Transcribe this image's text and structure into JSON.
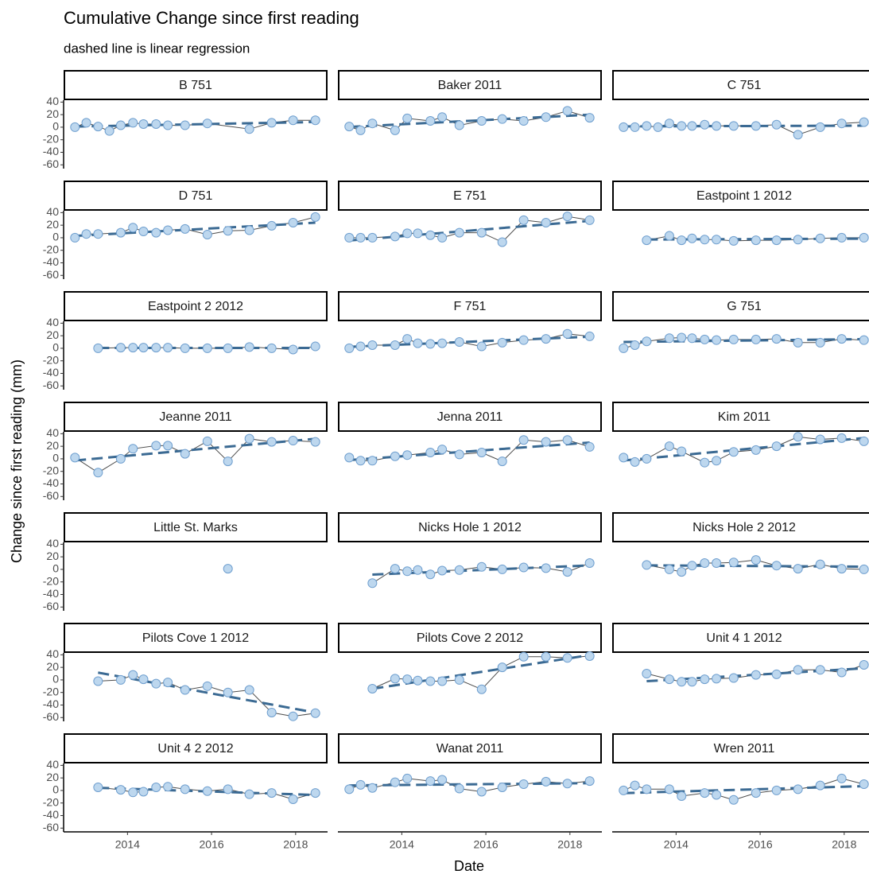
{
  "chart_data": {
    "type": "facet-line",
    "title": "Cumulative Change since first reading",
    "subtitle": "dashed line is linear regression",
    "x_label": "Date",
    "y_label": "Change since first reading (mm)",
    "xlim": [
      2012.48,
      2018.76
    ],
    "ylim": [
      -66,
      43
    ],
    "xticks": [
      2014,
      2016,
      2018
    ],
    "yticks": [
      40,
      20,
      0,
      -20,
      -40,
      -60
    ],
    "point_color": "#bdd7ee",
    "point_edge": "#6f9fcf",
    "line_color": "#4d4d4d",
    "trend_color": "#3b6a93",
    "panels": [
      {
        "name": "B 751",
        "x": [
          2012.75,
          2013.02,
          2013.3,
          2013.57,
          2013.84,
          2014.13,
          2014.38,
          2014.68,
          2014.96,
          2015.37,
          2015.9,
          2016.9,
          2017.43,
          2017.94,
          2018.47
        ],
        "values": [
          0,
          7,
          1,
          -6,
          3,
          7,
          5,
          5,
          3,
          3,
          6,
          -3,
          7,
          11,
          11
        ]
      },
      {
        "name": "Baker 2011",
        "x": [
          2012.75,
          2013.02,
          2013.3,
          2013.84,
          2014.13,
          2014.68,
          2014.96,
          2015.37,
          2015.9,
          2016.39,
          2016.9,
          2017.43,
          2017.94,
          2018.47
        ],
        "values": [
          1,
          -5,
          6,
          -5,
          14,
          10,
          16,
          3,
          10,
          13,
          10,
          16,
          26,
          15
        ]
      },
      {
        "name": "C 751",
        "x": [
          2012.75,
          2013.02,
          2013.3,
          2013.57,
          2013.84,
          2014.13,
          2014.38,
          2014.68,
          2014.96,
          2015.37,
          2015.9,
          2016.39,
          2016.9,
          2017.43,
          2017.94,
          2018.47
        ],
        "values": [
          0,
          0,
          2,
          0,
          6,
          2,
          2,
          4,
          2,
          2,
          2,
          4,
          -12,
          0,
          6,
          8
        ]
      },
      {
        "name": "D 751",
        "x": [
          2012.75,
          2013.02,
          2013.3,
          2013.84,
          2014.13,
          2014.38,
          2014.68,
          2014.96,
          2015.37,
          2015.9,
          2016.39,
          2016.9,
          2017.43,
          2017.94,
          2018.47
        ],
        "values": [
          0,
          6,
          6,
          8,
          16,
          10,
          8,
          12,
          14,
          5,
          11,
          12,
          19,
          24,
          33
        ]
      },
      {
        "name": "E 751",
        "x": [
          2012.75,
          2013.02,
          2013.3,
          2013.84,
          2014.13,
          2014.38,
          2014.68,
          2014.96,
          2015.37,
          2015.9,
          2016.39,
          2016.9,
          2017.43,
          2017.94,
          2018.47
        ],
        "values": [
          0,
          0,
          0,
          2,
          7,
          7,
          4,
          0,
          8,
          8,
          -7,
          28,
          24,
          34,
          28
        ]
      },
      {
        "name": "Eastpoint 1 2012",
        "x": [
          2013.3,
          2013.84,
          2014.13,
          2014.38,
          2014.68,
          2014.96,
          2015.37,
          2015.9,
          2016.39,
          2016.9,
          2017.43,
          2017.94,
          2018.47
        ],
        "values": [
          -4,
          3,
          -4,
          -1,
          -3,
          -3,
          -5,
          -4,
          -4,
          -3,
          -1,
          0,
          0
        ]
      },
      {
        "name": "Eastpoint 2 2012",
        "x": [
          2013.3,
          2013.84,
          2014.13,
          2014.38,
          2014.68,
          2014.96,
          2015.37,
          2015.9,
          2016.39,
          2016.9,
          2017.43,
          2017.94,
          2018.47
        ],
        "values": [
          0,
          1,
          1,
          1,
          1,
          1,
          0,
          0,
          0,
          2,
          0,
          -2,
          3
        ]
      },
      {
        "name": "F 751",
        "x": [
          2012.75,
          2013.02,
          2013.3,
          2013.84,
          2014.13,
          2014.38,
          2014.68,
          2014.96,
          2015.37,
          2015.9,
          2016.39,
          2016.9,
          2017.43,
          2017.94,
          2018.47
        ],
        "values": [
          0,
          3,
          5,
          5,
          15,
          8,
          7,
          8,
          10,
          3,
          9,
          13,
          15,
          23,
          19
        ]
      },
      {
        "name": "G 751",
        "x": [
          2012.75,
          2013.02,
          2013.3,
          2013.84,
          2014.13,
          2014.38,
          2014.68,
          2014.96,
          2015.37,
          2015.9,
          2016.39,
          2016.9,
          2017.43,
          2017.94,
          2018.47
        ],
        "values": [
          0,
          5,
          11,
          16,
          17,
          16,
          14,
          13,
          14,
          14,
          15,
          9,
          9,
          15,
          13
        ]
      },
      {
        "name": "Jeanne 2011",
        "x": [
          2012.75,
          2013.3,
          2013.84,
          2014.13,
          2014.68,
          2014.96,
          2015.37,
          2015.9,
          2016.39,
          2016.9,
          2017.43,
          2017.94,
          2018.47
        ],
        "values": [
          2,
          -22,
          0,
          16,
          21,
          21,
          8,
          28,
          -4,
          32,
          27,
          29,
          27
        ]
      },
      {
        "name": "Jenna 2011",
        "x": [
          2012.75,
          2013.02,
          2013.3,
          2013.84,
          2014.13,
          2014.68,
          2014.96,
          2015.37,
          2015.9,
          2016.39,
          2016.9,
          2017.43,
          2017.94,
          2018.47
        ],
        "values": [
          2,
          -3,
          -3,
          4,
          6,
          10,
          15,
          7,
          10,
          -4,
          30,
          27,
          30,
          19
        ]
      },
      {
        "name": "Kim 2011",
        "x": [
          2012.75,
          2013.02,
          2013.3,
          2013.84,
          2014.13,
          2014.68,
          2014.96,
          2015.37,
          2015.9,
          2016.39,
          2016.9,
          2017.43,
          2017.94,
          2018.47
        ],
        "values": [
          2,
          -5,
          0,
          20,
          12,
          -6,
          -3,
          11,
          14,
          20,
          35,
          31,
          33,
          28
        ]
      },
      {
        "name": "Little St. Marks",
        "x": [
          2016.39
        ],
        "values": [
          1
        ]
      },
      {
        "name": "Nicks Hole 1 2012",
        "x": [
          2013.3,
          2013.84,
          2014.13,
          2014.38,
          2014.68,
          2014.96,
          2015.37,
          2015.9,
          2016.39,
          2016.9,
          2017.43,
          2017.94,
          2018.47
        ],
        "values": [
          -22,
          1,
          -3,
          -1,
          -8,
          -2,
          -1,
          4,
          0,
          3,
          2,
          -4,
          10
        ]
      },
      {
        "name": "Nicks Hole 2 2012",
        "x": [
          2013.3,
          2013.84,
          2014.13,
          2014.38,
          2014.68,
          2014.96,
          2015.37,
          2015.9,
          2016.39,
          2016.9,
          2017.43,
          2017.94,
          2018.47
        ],
        "values": [
          7,
          0,
          -4,
          6,
          10,
          10,
          11,
          15,
          6,
          1,
          8,
          1,
          0
        ]
      },
      {
        "name": "Pilots Cove 1 2012",
        "x": [
          2013.3,
          2013.84,
          2014.13,
          2014.38,
          2014.68,
          2014.96,
          2015.37,
          2015.9,
          2016.39,
          2016.9,
          2017.43,
          2017.94,
          2018.47
        ],
        "values": [
          -2,
          0,
          8,
          1,
          -6,
          -4,
          -16,
          -10,
          -20,
          -16,
          -52,
          -58,
          -53
        ]
      },
      {
        "name": "Pilots Cove 2 2012",
        "x": [
          2013.3,
          2013.84,
          2014.13,
          2014.38,
          2014.68,
          2014.96,
          2015.37,
          2015.9,
          2016.39,
          2016.9,
          2017.43,
          2017.94,
          2018.47
        ],
        "values": [
          -14,
          2,
          1,
          -1,
          -2,
          -2,
          0,
          -15,
          20,
          37,
          37,
          35,
          38
        ]
      },
      {
        "name": "Unit 4 1 2012",
        "x": [
          2013.3,
          2013.84,
          2014.13,
          2014.38,
          2014.68,
          2014.96,
          2015.37,
          2015.9,
          2016.39,
          2016.9,
          2017.43,
          2017.94,
          2018.47
        ],
        "values": [
          10,
          1,
          -3,
          -3,
          1,
          2,
          3,
          8,
          9,
          16,
          16,
          12,
          24
        ]
      },
      {
        "name": "Unit 4 2 2012",
        "x": [
          2013.3,
          2013.84,
          2014.13,
          2014.38,
          2014.68,
          2014.96,
          2015.37,
          2015.9,
          2016.39,
          2016.9,
          2017.43,
          2017.94,
          2018.47
        ],
        "values": [
          5,
          1,
          -3,
          -2,
          5,
          6,
          2,
          -1,
          2,
          -6,
          -4,
          -14,
          -4
        ]
      },
      {
        "name": "Wanat 2011",
        "x": [
          2012.75,
          2013.02,
          2013.3,
          2013.84,
          2014.13,
          2014.68,
          2014.96,
          2015.37,
          2015.9,
          2016.39,
          2016.9,
          2017.43,
          2017.94,
          2018.47
        ],
        "values": [
          2,
          9,
          4,
          13,
          19,
          15,
          17,
          3,
          -2,
          5,
          10,
          14,
          11,
          15
        ]
      },
      {
        "name": "Wren 2011",
        "x": [
          2012.75,
          2013.02,
          2013.3,
          2013.84,
          2014.13,
          2014.68,
          2014.96,
          2015.37,
          2015.9,
          2016.39,
          2016.9,
          2017.43,
          2017.94,
          2018.47
        ],
        "values": [
          0,
          8,
          2,
          2,
          -9,
          -4,
          -7,
          -15,
          -4,
          0,
          2,
          8,
          19,
          10
        ]
      }
    ]
  }
}
